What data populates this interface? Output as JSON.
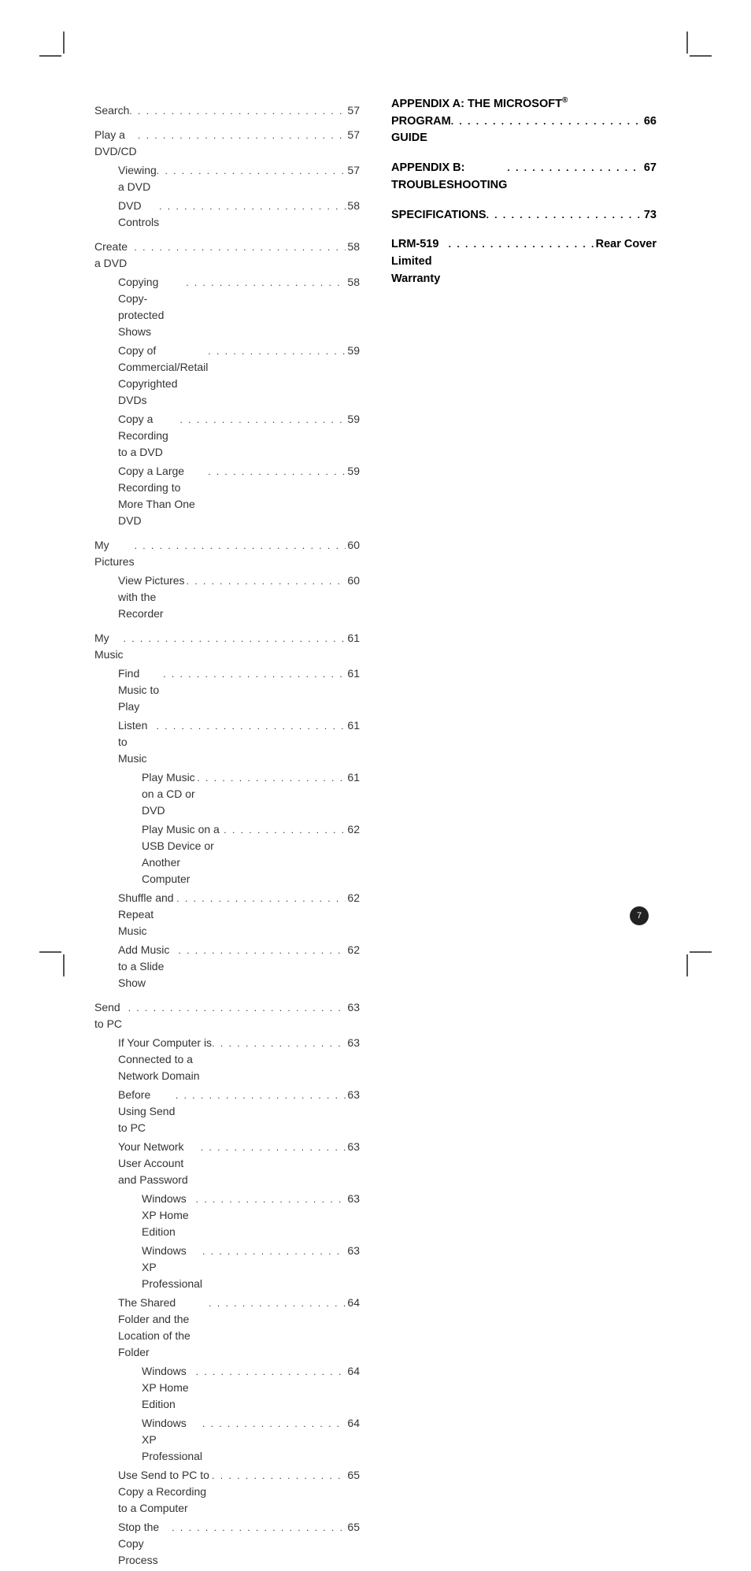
{
  "left_column": [
    {
      "label": "Search",
      "page": "57",
      "indent": 0,
      "section": true
    },
    {
      "label": "Play a DVD/CD",
      "page": "57",
      "indent": 0,
      "section": true
    },
    {
      "label": "Viewing a DVD",
      "page": "57",
      "indent": 1
    },
    {
      "label": "DVD Controls",
      "page": "58",
      "indent": 1
    },
    {
      "label": "Create a DVD",
      "page": "58",
      "indent": 0,
      "section": true
    },
    {
      "label": "Copying Copy-protected Shows",
      "page": "58",
      "indent": 1
    },
    {
      "label": "Copy of Commercial/Retail Copyrighted DVDs",
      "page": "59",
      "indent": 1
    },
    {
      "label": "Copy a Recording to a DVD",
      "page": "59",
      "indent": 1
    },
    {
      "label": "Copy a Large Recording to More Than One DVD",
      "page": "59",
      "indent": 1
    },
    {
      "label": "My Pictures",
      "page": "60",
      "indent": 0,
      "section": true
    },
    {
      "label": "View Pictures with the Recorder",
      "page": "60",
      "indent": 1
    },
    {
      "label": "My Music",
      "page": "61",
      "indent": 0,
      "section": true
    },
    {
      "label": "Find Music to Play",
      "page": "61",
      "indent": 1
    },
    {
      "label": "Listen to Music",
      "page": "61",
      "indent": 1
    },
    {
      "label": "Play Music on a CD or DVD",
      "page": "61",
      "indent": 2
    },
    {
      "label": "Play Music on a USB Device or Another Computer",
      "page": "62",
      "indent": 2
    },
    {
      "label": "Shuffle and Repeat Music",
      "page": "62",
      "indent": 1
    },
    {
      "label": "Add Music to a Slide Show",
      "page": "62",
      "indent": 1
    },
    {
      "label": "Send to PC",
      "page": "63",
      "indent": 0,
      "section": true
    },
    {
      "label": "If Your Computer is Connected to a Network Domain",
      "page": "63",
      "indent": 1
    },
    {
      "label": "Before Using Send to PC",
      "page": "63",
      "indent": 1
    },
    {
      "label": "Your Network User Account and Password",
      "page": "63",
      "indent": 1
    },
    {
      "label": "Windows XP Home Edition",
      "page": "63",
      "indent": 2
    },
    {
      "label": "Windows XP Professional",
      "page": "63",
      "indent": 2
    },
    {
      "label": "The Shared Folder and the Location of the Folder",
      "page": "64",
      "indent": 1
    },
    {
      "label": "Windows XP Home Edition",
      "page": "64",
      "indent": 2
    },
    {
      "label": "Windows XP Professional",
      "page": "64",
      "indent": 2
    },
    {
      "label": "Use Send to PC to Copy a Recording to a Computer",
      "page": "65",
      "indent": 1
    },
    {
      "label": "Stop the Copy Process",
      "page": "65",
      "indent": 1
    }
  ],
  "right_column": {
    "appendix_a_label": "APPENDIX A: THE MICROSOFT",
    "appendix_a_sup": "®",
    "appendix_a_line2": "PROGRAM GUIDE",
    "appendix_a_page": "66",
    "appendix_b_label": "APPENDIX B: TROUBLESHOOTING",
    "appendix_b_page": "67",
    "specs_label": "SPECIFICATIONS",
    "specs_page": "73",
    "warranty_label": "LRM-519 Limited Warranty",
    "warranty_page": "Rear Cover"
  },
  "page_number": "7",
  "colors": {
    "text": "#333333",
    "bold_text": "#000000",
    "badge_bg": "#222222",
    "badge_fg": "#ffffff",
    "background": "#ffffff"
  },
  "typography": {
    "body_fontsize": 14,
    "bold_fontsize": 14.5,
    "badge_fontsize": 11
  }
}
